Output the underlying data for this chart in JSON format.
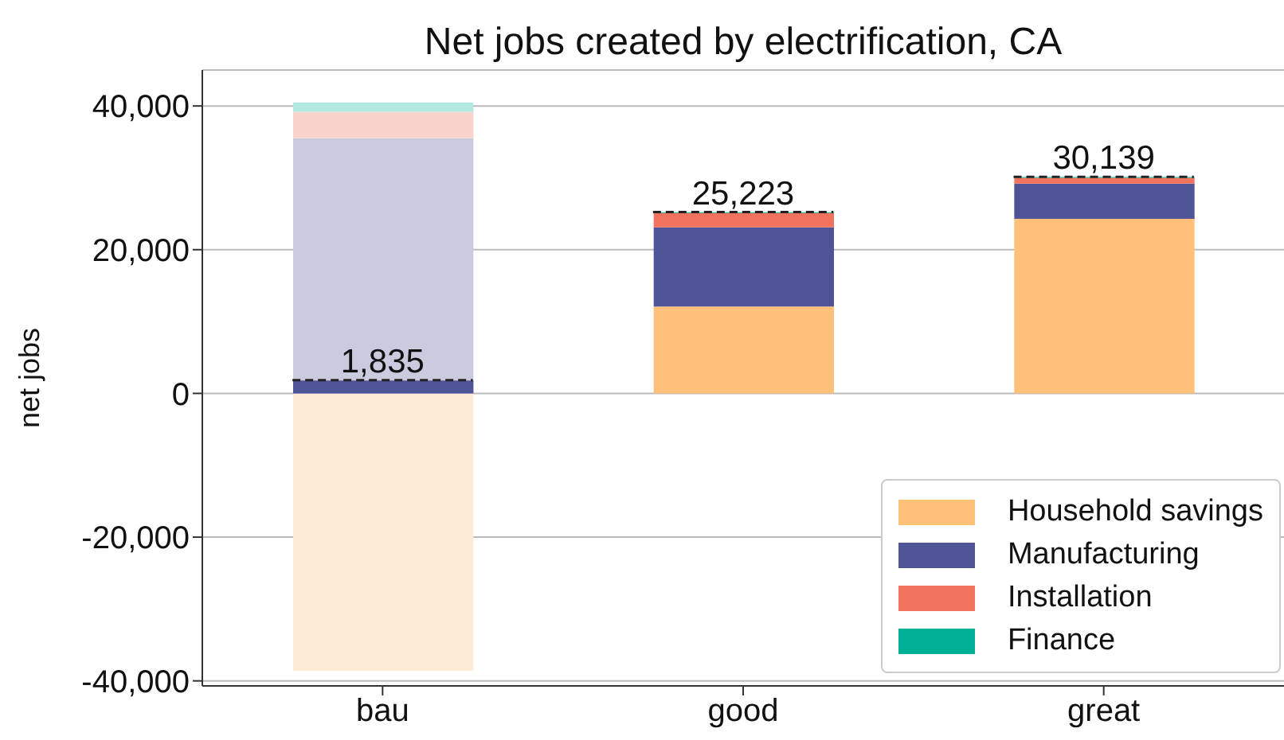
{
  "chart_data": {
    "type": "bar",
    "title": "Net jobs created by electrification, CA",
    "ylabel": "net jobs",
    "categories": [
      "bau",
      "good",
      "great"
    ],
    "series": [
      {
        "name": "Household savings",
        "color": "#ffc07a",
        "colors": [
          "#fdebd6",
          "#ffc07a",
          "#ffc07a"
        ],
        "values": [
          -38600,
          12100,
          24300
        ],
        "base": [
          0,
          0,
          0
        ]
      },
      {
        "name": "Manufacturing",
        "color": "#4f5398",
        "colors": [
          "#cbcbe0",
          "#4f5398",
          "#4f5398"
        ],
        "values": [
          35500,
          11000,
          4900
        ],
        "base": [
          0,
          12100,
          24300
        ]
      },
      {
        "name": "Installation",
        "color": "#f2735d",
        "colors": [
          "#f8d3ce",
          "#f2735d",
          "#f2735d"
        ],
        "values": [
          3700,
          2000,
          800
        ],
        "base": [
          35500,
          23100,
          29200
        ]
      },
      {
        "name": "Finance",
        "color": "#00b095",
        "colors": [
          "#b2e8df",
          "#00b095",
          "#00b095"
        ],
        "values": [
          1300,
          100,
          100
        ],
        "base": [
          39200,
          25100,
          30000
        ]
      },
      {
        "color": "#4f5398",
        "values": [
          1800,
          null,
          null
        ],
        "base": [
          0,
          null,
          null
        ]
      }
    ],
    "annotations": [
      {
        "text": "1,835",
        "x": "bau",
        "y": 1835
      },
      {
        "text": "25,223",
        "x": "good",
        "y": 25223
      },
      {
        "text": "30,139",
        "x": "great",
        "y": 30139
      }
    ],
    "ylim": [
      -40700,
      45000
    ],
    "yticks": [
      {
        "value": -40000,
        "label": "-40,000"
      },
      {
        "value": -20000,
        "label": "-20,000"
      },
      0,
      {
        "value": 20000,
        "label": "20,000"
      },
      {
        "value": 40000,
        "label": "40,000"
      }
    ],
    "grid": "y",
    "legend": "bottom right"
  }
}
